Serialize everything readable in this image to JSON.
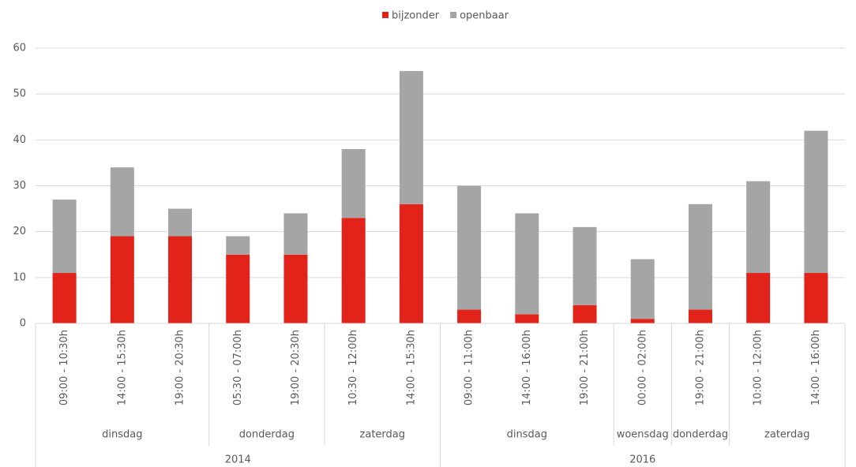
{
  "chart_data": {
    "type": "bar",
    "stacked": true,
    "groups": [
      {
        "label": "2014",
        "groups": [
          {
            "label": "dinsdag",
            "categories": [
              "09:00 - 10:30h",
              "14:00 - 15:30h",
              "19:00 - 20:30h"
            ]
          },
          {
            "label": "donderdag",
            "categories": [
              "05:30 - 07:00h",
              "19:00 - 20:30h"
            ]
          },
          {
            "label": "zaterdag",
            "categories": [
              "10:30 - 12:00h",
              "14:00 - 15:30h"
            ]
          }
        ]
      },
      {
        "label": "2016",
        "groups": [
          {
            "label": "dinsdag",
            "categories": [
              "09:00 - 11:00h",
              "14:00 - 16:00h",
              "19:00 - 21:00h"
            ]
          },
          {
            "label": "woensdag",
            "categories": [
              "00:00 - 02:00h"
            ]
          },
          {
            "label": "donderdag",
            "categories": [
              "19:00 - 21:00h"
            ]
          },
          {
            "label": "zaterdag",
            "categories": [
              "10:00 - 12:00h",
              "14:00 - 16:00h"
            ]
          }
        ]
      }
    ],
    "series": [
      {
        "name": "bijzonder",
        "color": "#e2231a",
        "values": [
          11,
          19,
          19,
          15,
          15,
          23,
          26,
          3,
          2,
          4,
          1,
          3,
          11,
          11
        ]
      },
      {
        "name": "openbaar",
        "color": "#a5a5a5",
        "values": [
          16,
          15,
          6,
          4,
          9,
          15,
          29,
          27,
          22,
          17,
          13,
          23,
          20,
          31
        ]
      }
    ],
    "ylim": [
      0,
      60
    ],
    "yticks": [
      0,
      10,
      20,
      30,
      40,
      50,
      60
    ],
    "grid": true,
    "legend": "top"
  }
}
